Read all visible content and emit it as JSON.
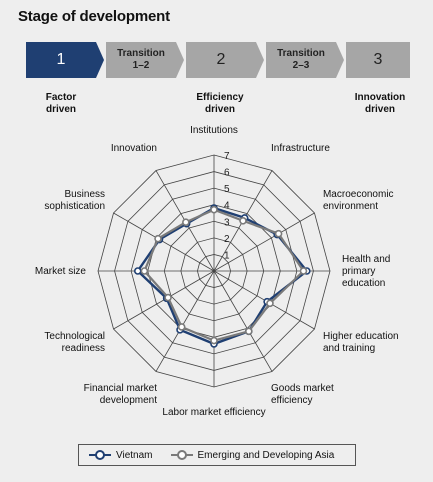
{
  "title": "Stage of development",
  "stages": {
    "s1": {
      "number": "1",
      "caption": "Factor driven"
    },
    "t12": {
      "label": "Transition 1–2"
    },
    "s2": {
      "number": "2",
      "caption": "Efficiency driven"
    },
    "t23": {
      "label": "Transition 2–3"
    },
    "s3": {
      "number": "3",
      "caption": "Innovation driven"
    },
    "active_color": "#1f3f72",
    "inactive_color": "#a6a6a6"
  },
  "chart_data": {
    "type": "radar",
    "axes": [
      "Institutions",
      "Infrastructure",
      "Macroeconomic environment",
      "Health and primary education",
      "Higher education and training",
      "Goods market efficiency",
      "Labor market efficiency",
      "Financial market development",
      "Technological readiness",
      "Market size",
      "Business sophistication",
      "Innovation"
    ],
    "rlim": [
      1,
      7
    ],
    "ticks": [
      "1",
      "2",
      "3",
      "4",
      "5",
      "6",
      "7"
    ],
    "grid": "polygon",
    "series": [
      {
        "name": "Vietnam",
        "color": "#1f3f72",
        "values": [
          3.8,
          3.7,
          4.4,
          5.6,
          3.7,
          4.2,
          4.4,
          4.1,
          3.3,
          4.6,
          3.8,
          3.3
        ]
      },
      {
        "name": "Emerging and Developing Asia",
        "color": "#7a7a7a",
        "values": [
          3.7,
          3.5,
          4.5,
          5.4,
          3.9,
          4.2,
          4.2,
          3.9,
          3.2,
          4.2,
          3.9,
          3.4
        ]
      }
    ],
    "legend_position": "bottom"
  },
  "axis_label_lines": [
    [
      "Institutions"
    ],
    [
      "Infrastructure"
    ],
    [
      "Macroeconomic",
      "environment"
    ],
    [
      "Health and",
      "primary",
      "education"
    ],
    [
      "Higher education",
      "and training"
    ],
    [
      "Goods market",
      "efficiency"
    ],
    [
      "Labor market efficiency"
    ],
    [
      "Financial market",
      "development"
    ],
    [
      "Technological",
      "readiness"
    ],
    [
      "Market size"
    ],
    [
      "Business",
      "sophistication"
    ],
    [
      "Innovation"
    ]
  ]
}
